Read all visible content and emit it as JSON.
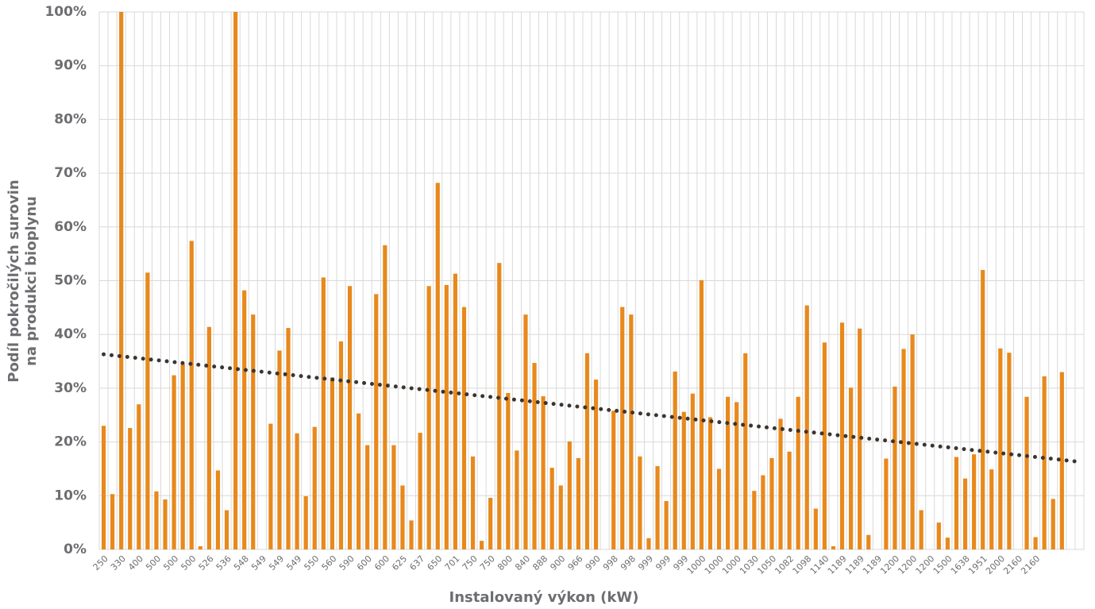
{
  "chart_data": {
    "type": "bar",
    "y_label": [
      "Podíl pokročilých surovin",
      "na produkci bioplynu"
    ],
    "x_label": "Instalovaný výkon (kW)",
    "color": "#e8891c",
    "trendline_color": "#3b3530",
    "grid": true,
    "categories": [
      "250",
      null,
      "330",
      null,
      "400",
      null,
      "500",
      null,
      "500",
      null,
      "500",
      null,
      "526",
      null,
      "536",
      null,
      "548",
      null,
      "549",
      null,
      "549",
      null,
      "549",
      null,
      "550",
      null,
      "560",
      null,
      "590",
      null,
      "600",
      null,
      "600",
      null,
      "625",
      null,
      "637",
      null,
      "650",
      null,
      "701",
      null,
      "750",
      null,
      "750",
      null,
      "800",
      null,
      "840",
      null,
      "888",
      null,
      "900",
      null,
      "966",
      null,
      "990",
      null,
      "998",
      null,
      "998",
      null,
      "999",
      null,
      "999",
      null,
      "999",
      null,
      "1000",
      null,
      "1000",
      null,
      "1000",
      null,
      "1030",
      null,
      "1050",
      null,
      "1082",
      null,
      "1098",
      null,
      "1140",
      null,
      "1189",
      null,
      "1189",
      null,
      "1189",
      null,
      "1200",
      null,
      "1200",
      null,
      "1200",
      null,
      "1500",
      null,
      "1638",
      null,
      "1951",
      null,
      "2000",
      null,
      "2160",
      null,
      "2160",
      null,
      null,
      null,
      null,
      null
    ],
    "values": [
      23,
      10.3,
      100,
      22.6,
      27,
      51.5,
      10.8,
      9.3,
      32.4,
      34.5,
      57.4,
      0.6,
      41.4,
      14.7,
      7.3,
      100,
      48.2,
      43.7,
      0,
      23.4,
      37,
      41.2,
      21.6,
      9.9,
      22.8,
      50.6,
      32,
      38.7,
      49,
      25.3,
      19.4,
      47.5,
      56.6,
      19.4,
      11.9,
      5.4,
      21.7,
      49,
      68.2,
      49.2,
      51.3,
      45.1,
      17.3,
      1.6,
      9.6,
      53.3,
      29.1,
      18.4,
      43.7,
      34.7,
      28.5,
      15.2,
      11.9,
      20.1,
      17,
      36.5,
      31.6,
      0,
      25.8,
      45.1,
      43.7,
      17.3,
      2.1,
      15.5,
      9,
      33.1,
      25.6,
      29,
      50.1,
      24.6,
      15,
      28.4,
      27.4,
      36.5,
      10.9,
      13.8,
      17,
      24.3,
      18.2,
      28.4,
      45.4,
      7.6,
      38.5,
      0.6,
      42.2,
      30.1,
      41.1,
      2.7,
      0,
      16.9,
      30.3,
      37.3,
      40,
      7.3,
      0,
      5,
      2.2,
      17.2,
      13.2,
      17.7,
      52,
      14.9,
      37.4,
      36.6,
      0,
      28.4,
      2.3,
      32.2,
      9.4,
      33,
      0,
      0
    ],
    "trendline": [
      36.3,
      16.3
    ],
    "ylim": [
      0,
      100
    ],
    "yticks": [
      {
        "value": 0,
        "label": "0%"
      },
      {
        "value": 10,
        "label": "10%"
      },
      {
        "value": 20,
        "label": "20%"
      },
      {
        "value": 30,
        "label": "30%"
      },
      {
        "value": 40,
        "label": "40%"
      },
      {
        "value": 50,
        "label": "50%"
      },
      {
        "value": 60,
        "label": "60%"
      },
      {
        "value": 70,
        "label": "70%"
      },
      {
        "value": 80,
        "label": "80%"
      },
      {
        "value": 90,
        "label": "90%"
      },
      {
        "value": 100,
        "label": "100%"
      }
    ]
  }
}
